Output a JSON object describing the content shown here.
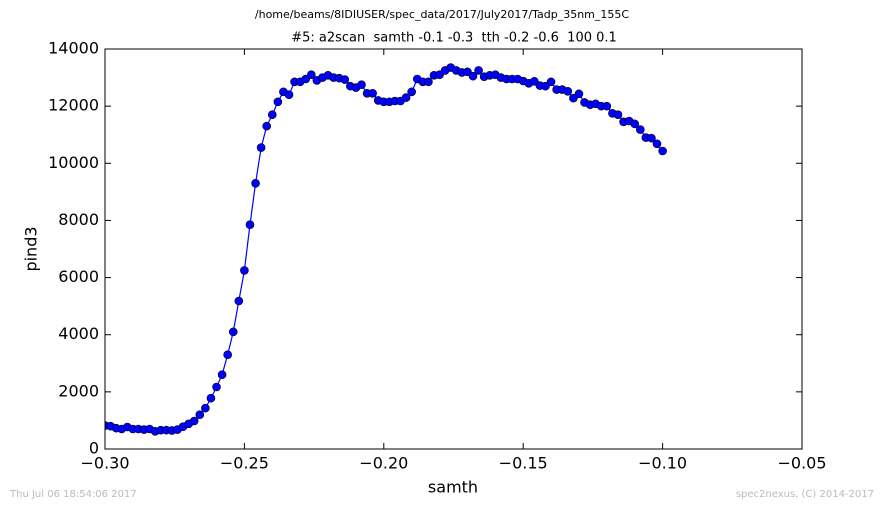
{
  "chart_data": {
    "type": "line",
    "header": "/home/beams/8IDIUSER/spec_data/2017/July2017/Tadp_35nm_155C",
    "title": "#5: a2scan  samth -0.1 -0.3  tth -0.2 -0.6  100 0.1",
    "x_label": "samth",
    "y_label": "pind3",
    "footer_left": "Thu Jul 06 18:54:06 2017",
    "footer_right": "spec2nexus, (C) 2014-2017",
    "xlim": [
      -0.3,
      -0.05
    ],
    "xticks": [
      {
        "value": -0.3,
        "label": "−0.30"
      },
      {
        "value": -0.25,
        "label": "−0.25"
      },
      {
        "value": -0.2,
        "label": "−0.20"
      },
      {
        "value": -0.15,
        "label": "−0.15"
      },
      {
        "value": -0.1,
        "label": "−0.10"
      },
      {
        "value": -0.05,
        "label": "−0.05"
      }
    ],
    "ylim": [
      0,
      14000
    ],
    "yticks": [
      0,
      2000,
      4000,
      6000,
      8000,
      10000,
      12000,
      14000
    ],
    "x": [
      -0.3,
      -0.298,
      -0.296,
      -0.294,
      -0.292,
      -0.29,
      -0.288,
      -0.286,
      -0.284,
      -0.282,
      -0.28,
      -0.278,
      -0.276,
      -0.274,
      -0.272,
      -0.27,
      -0.268,
      -0.266,
      -0.264,
      -0.262,
      -0.26,
      -0.258,
      -0.256,
      -0.254,
      -0.252,
      -0.25,
      -0.248,
      -0.246,
      -0.244,
      -0.242,
      -0.24,
      -0.238,
      -0.236,
      -0.234,
      -0.232,
      -0.23,
      -0.228,
      -0.226,
      -0.224,
      -0.222,
      -0.22,
      -0.218,
      -0.216,
      -0.214,
      -0.212,
      -0.21,
      -0.208,
      -0.206,
      -0.204,
      -0.202,
      -0.2,
      -0.198,
      -0.196,
      -0.194,
      -0.192,
      -0.19,
      -0.188,
      -0.186,
      -0.184,
      -0.182,
      -0.18,
      -0.178,
      -0.176,
      -0.174,
      -0.172,
      -0.17,
      -0.168,
      -0.166,
      -0.164,
      -0.162,
      -0.16,
      -0.158,
      -0.156,
      -0.154,
      -0.152,
      -0.15,
      -0.148,
      -0.146,
      -0.144,
      -0.142,
      -0.14,
      -0.138,
      -0.136,
      -0.134,
      -0.132,
      -0.13,
      -0.128,
      -0.126,
      -0.124,
      -0.122,
      -0.12,
      -0.118,
      -0.116,
      -0.114,
      -0.112,
      -0.11,
      -0.108,
      -0.106,
      -0.104,
      -0.102,
      -0.1
    ],
    "series": [
      {
        "color": "#0000ff",
        "values": [
          820,
          800,
          730,
          700,
          770,
          700,
          700,
          680,
          700,
          620,
          660,
          660,
          650,
          680,
          780,
          880,
          980,
          1200,
          1430,
          1780,
          2170,
          2600,
          3300,
          4100,
          5180,
          6250,
          7850,
          9300,
          10550,
          11300,
          11700,
          12150,
          12500,
          12400,
          12850,
          12850,
          12950,
          13100,
          12900,
          13000,
          13080,
          13000,
          12980,
          12930,
          12700,
          12650,
          12750,
          12450,
          12450,
          12200,
          12150,
          12150,
          12180,
          12180,
          12300,
          12500,
          12950,
          12850,
          12850,
          13080,
          13100,
          13250,
          13350,
          13250,
          13180,
          13200,
          13050,
          13250,
          13030,
          13080,
          13100,
          13000,
          12950,
          12950,
          12950,
          12880,
          12800,
          12870,
          12720,
          12700,
          12850,
          12580,
          12580,
          12520,
          12280,
          12430,
          12130,
          12050,
          12080,
          12000,
          12000,
          11750,
          11700,
          11450,
          11480,
          11380,
          11180,
          10900,
          10880,
          10680,
          10430
        ]
      }
    ]
  }
}
